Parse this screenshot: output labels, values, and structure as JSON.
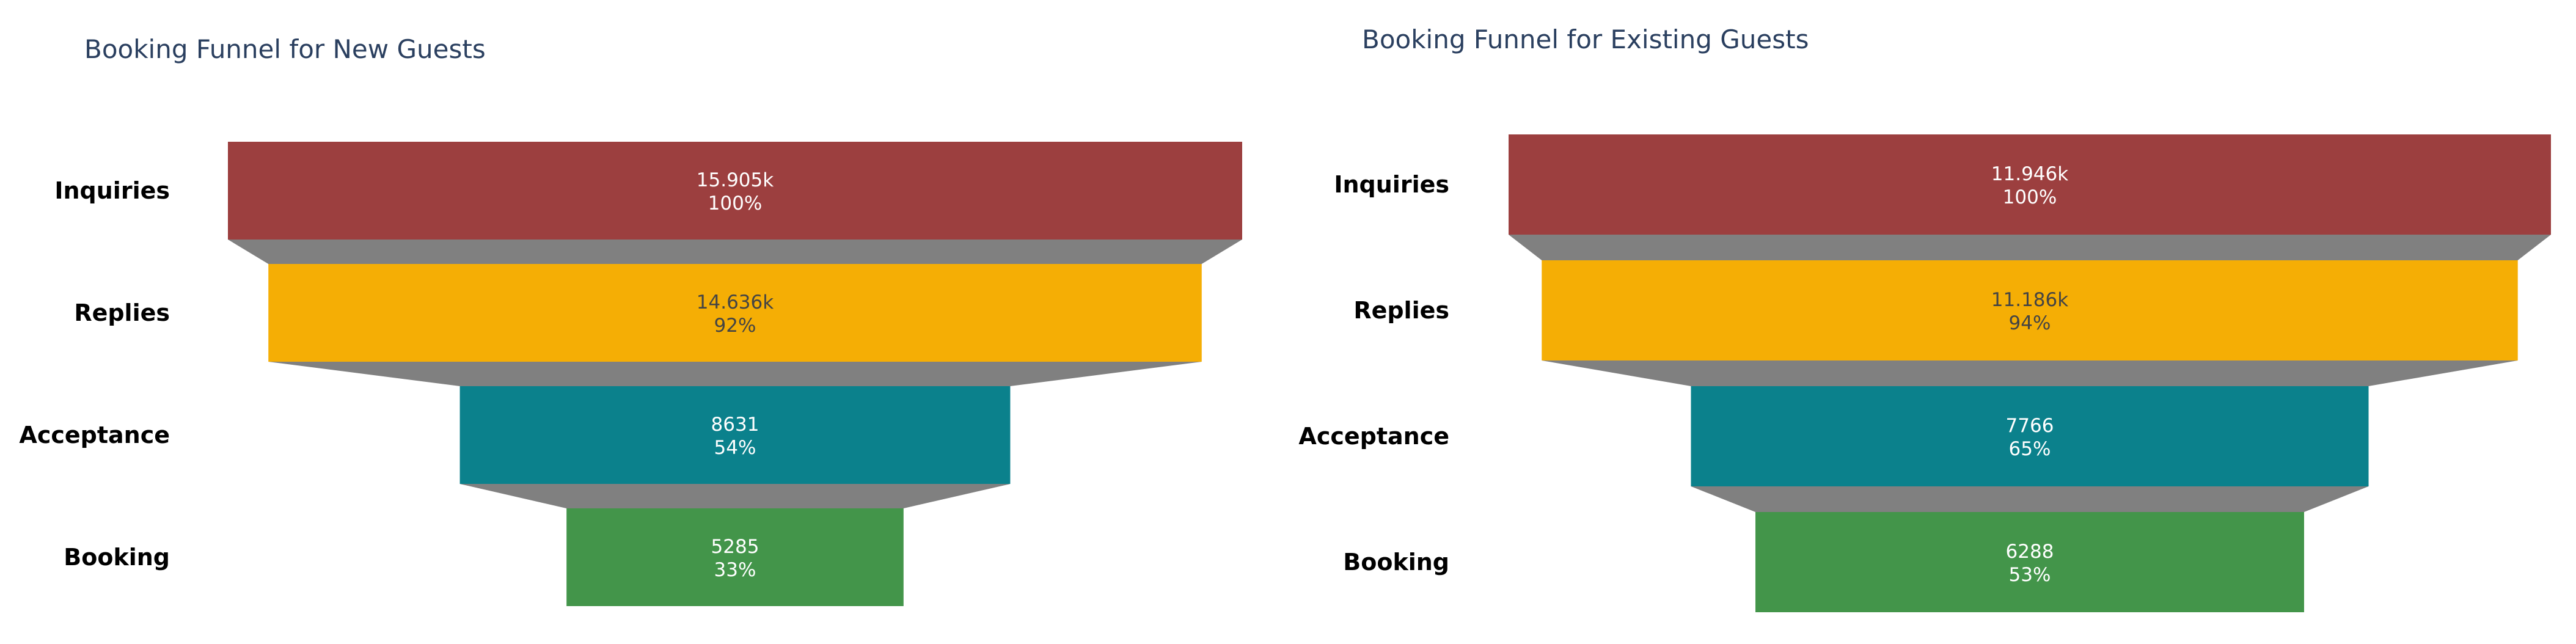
{
  "chart_data": [
    {
      "type": "funnel",
      "title": "Booking Funnel for New Guests",
      "stages": [
        "Inquiries",
        "Replies",
        "Acceptance",
        "Booking"
      ],
      "values": [
        15905,
        14636,
        8631,
        5285
      ],
      "value_labels": [
        "15.905k",
        "14.636k",
        "8631",
        "5285"
      ],
      "percent_labels": [
        "100%",
        "92%",
        "54%",
        "33%"
      ],
      "colors": [
        "#9c3f3f",
        "#f5ae05",
        "#0b818c",
        "#43954a"
      ],
      "label_colors": [
        "#ffffff",
        "#444444",
        "#ffffff",
        "#ffffff"
      ],
      "connector_color": "#808080"
    },
    {
      "type": "funnel",
      "title": "Booking Funnel for Existing Guests",
      "stages": [
        "Inquiries",
        "Replies",
        "Acceptance",
        "Booking"
      ],
      "values": [
        11946,
        11186,
        7766,
        6288
      ],
      "value_labels": [
        "11.946k",
        "11.186k",
        "7766",
        "6288"
      ],
      "percent_labels": [
        "100%",
        "94%",
        "65%",
        "53%"
      ],
      "colors": [
        "#9c3f3f",
        "#f5ae05",
        "#0b818c",
        "#43954a"
      ],
      "label_colors": [
        "#ffffff",
        "#444444",
        "#ffffff",
        "#ffffff"
      ],
      "connector_color": "#808080"
    }
  ]
}
